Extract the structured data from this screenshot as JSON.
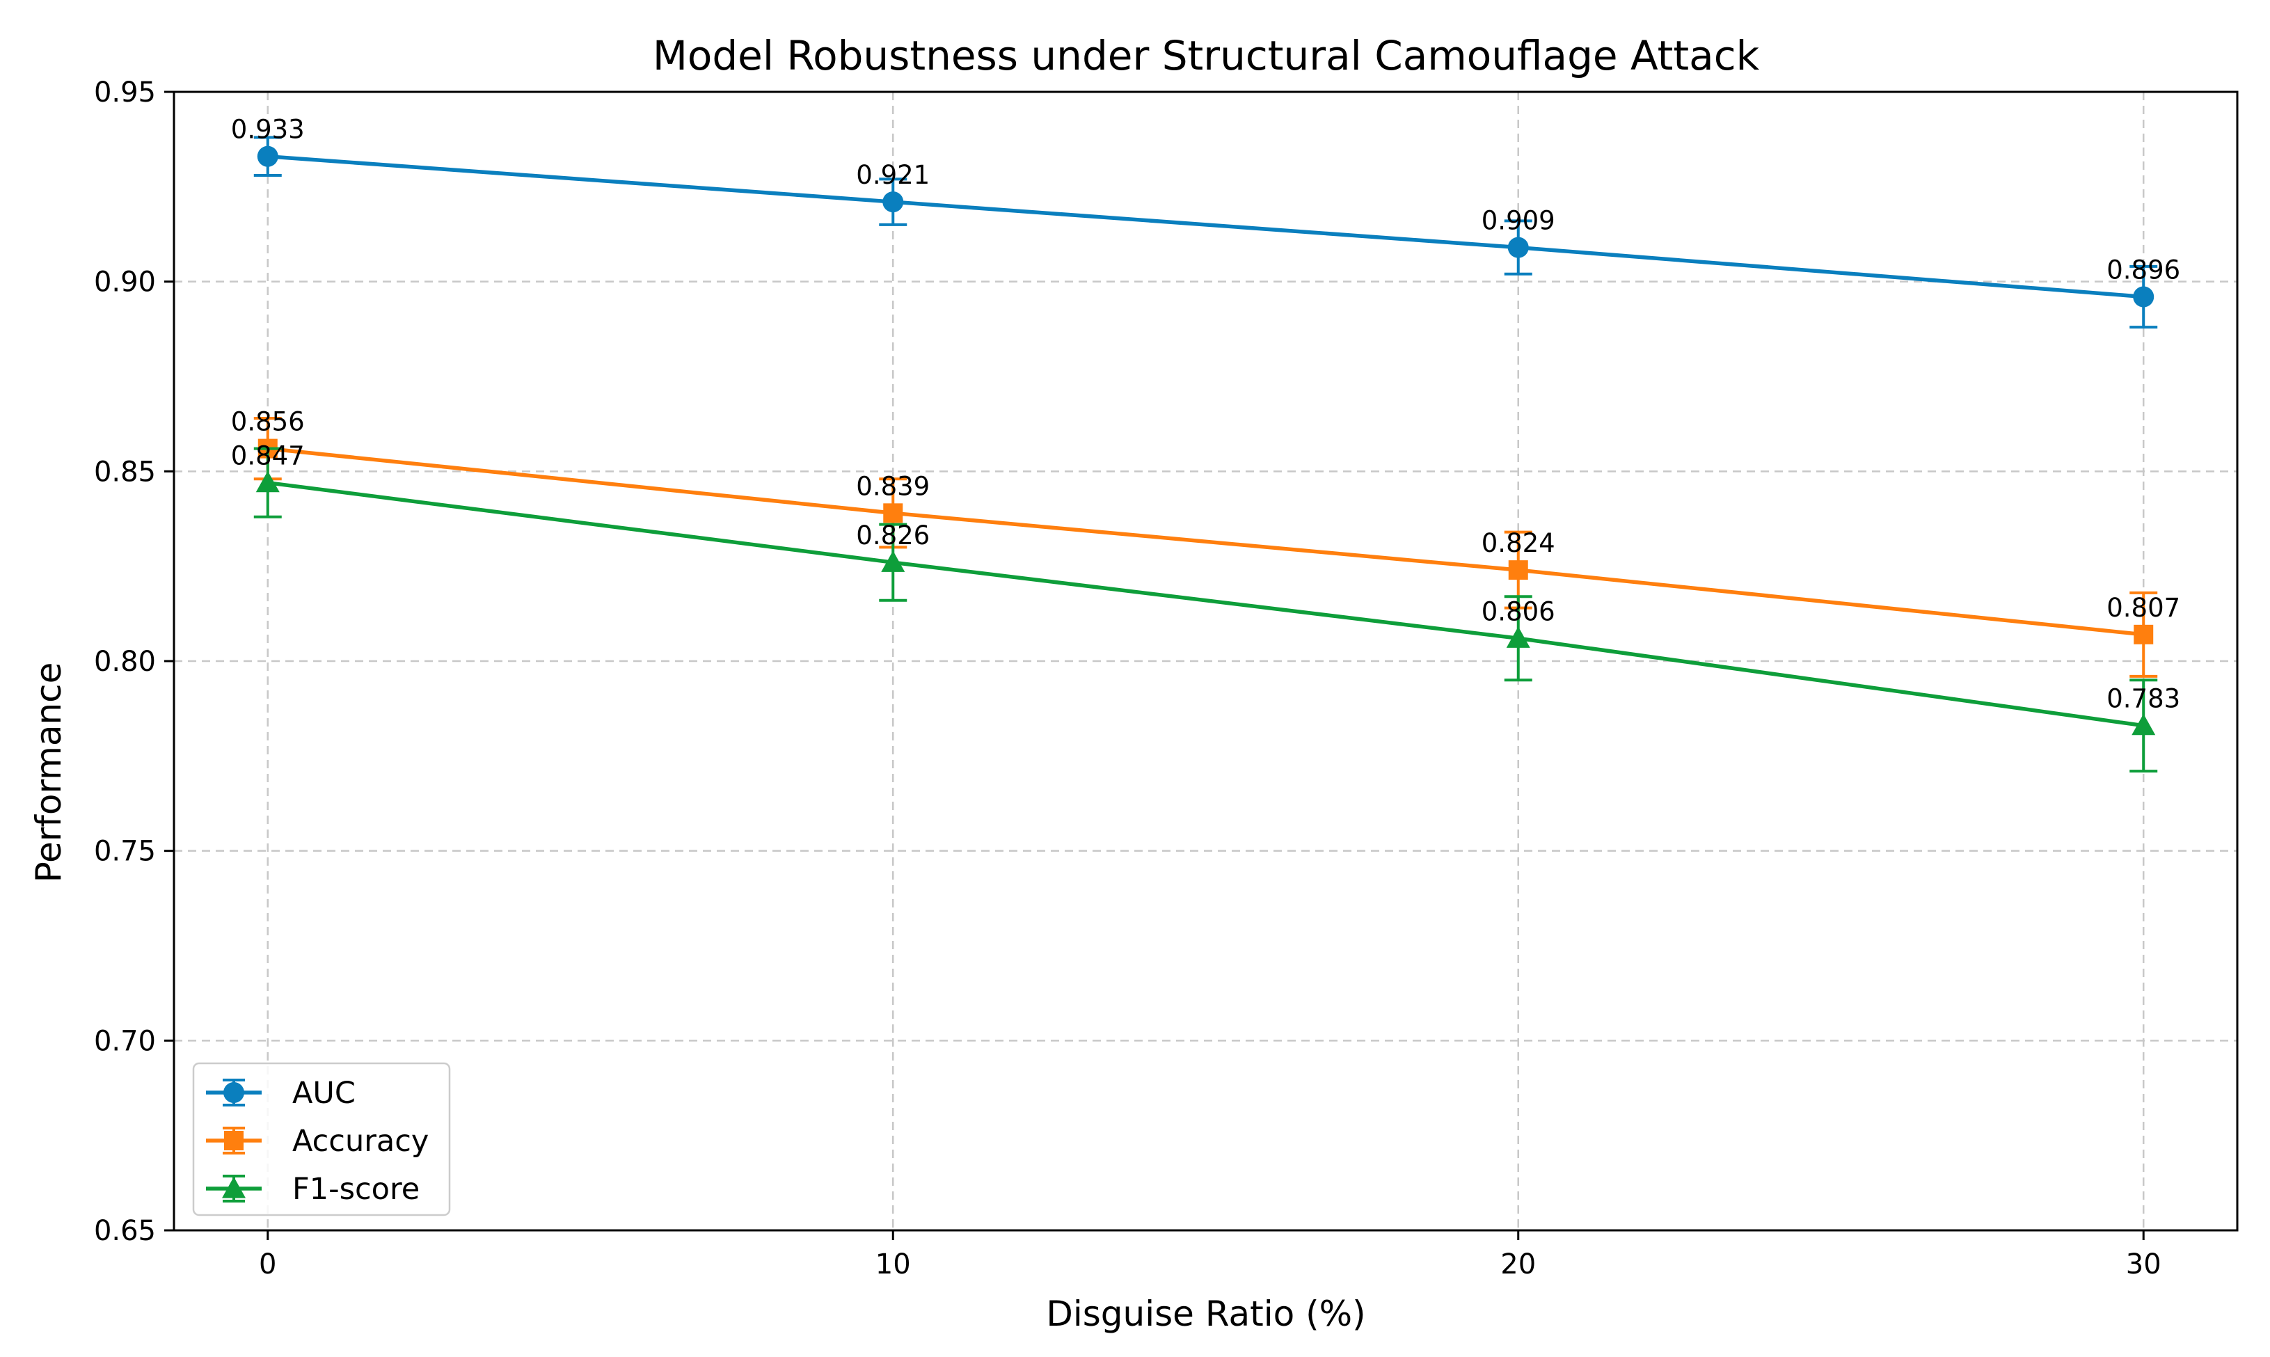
{
  "chart_data": {
    "type": "line",
    "title": "Model Robustness under Structural Camouflage Attack",
    "xlabel": "Disguise Ratio (%)",
    "ylabel": "Performance",
    "x": [
      0,
      10,
      20,
      30
    ],
    "x_tick_labels": [
      "0",
      "10",
      "20",
      "30"
    ],
    "xlim": [
      -1.5,
      31.5
    ],
    "ylim": [
      0.65,
      0.95
    ],
    "y_ticks": [
      0.65,
      0.7,
      0.75,
      0.8,
      0.85,
      0.9,
      0.95
    ],
    "y_tick_labels": [
      "0.65",
      "0.70",
      "0.75",
      "0.80",
      "0.85",
      "0.90",
      "0.95"
    ],
    "grid": true,
    "legend_position": "lower-left",
    "series": [
      {
        "name": "AUC",
        "color": "#0A7FBE",
        "marker": "circle",
        "values": [
          0.933,
          0.921,
          0.909,
          0.896
        ],
        "labels": [
          "0.933",
          "0.921",
          "0.909",
          "0.896"
        ],
        "error": [
          0.005,
          0.006,
          0.007,
          0.008
        ]
      },
      {
        "name": "Accuracy",
        "color": "#FF7F0E",
        "marker": "square",
        "values": [
          0.856,
          0.839,
          0.824,
          0.807
        ],
        "labels": [
          "0.856",
          "0.839",
          "0.824",
          "0.807"
        ],
        "error": [
          0.008,
          0.009,
          0.01,
          0.011
        ]
      },
      {
        "name": "F1-score",
        "color": "#0E9E3A",
        "marker": "triangle",
        "values": [
          0.847,
          0.826,
          0.806,
          0.783
        ],
        "labels": [
          "0.847",
          "0.826",
          "0.806",
          "0.783"
        ],
        "error": [
          0.009,
          0.01,
          0.011,
          0.012
        ]
      }
    ]
  }
}
